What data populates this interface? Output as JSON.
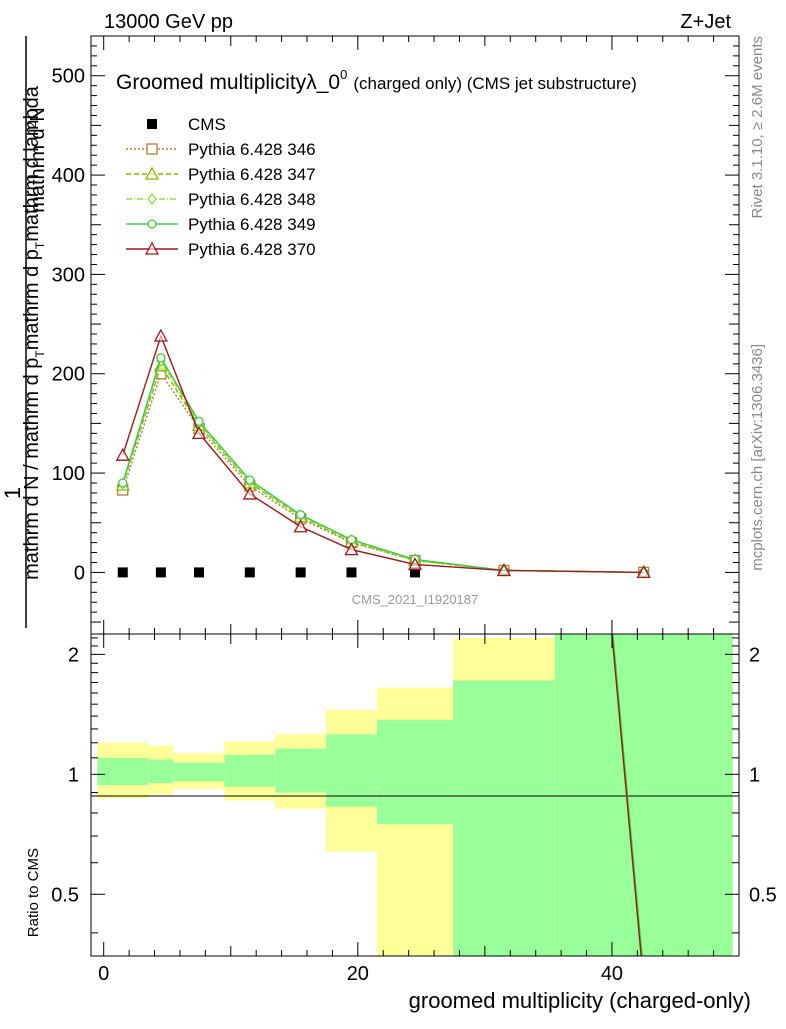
{
  "header": {
    "left": "13000 GeV pp",
    "right": "Z+Jet"
  },
  "side_labels": {
    "rivet": "Rivet 3.1.10, ≥ 2.6M events",
    "mcplots": "mcplots.cern.ch [arXiv:1306.3436]"
  },
  "chart_data": [
    {
      "type": "line",
      "title": "Groomed multiplicityλ_0",
      "title_sup": "0",
      "title_suffix": "(charged only) (CMS jet substructure)",
      "ylabel_top": "1",
      "ylabel_num": "mathrm d",
      "ylabel_num_sup": "2",
      "ylabel_num_end": "N",
      "ylabel_den": "mathrm d N / mathrm d p",
      "ylabel_den_sub": "T",
      "ylabel_den_end": "mathrm d p",
      "ylabel_den_sub2": "T",
      "ylabel_den_tail": "mathrm d lambda",
      "watermark": "CMS_2021_I1920187",
      "xlim": [
        -1,
        50
      ],
      "ylim": [
        -62,
        540
      ],
      "yticks": [
        0,
        100,
        200,
        300,
        400,
        500
      ],
      "legend_position": "top-left",
      "series": [
        {
          "name": "CMS",
          "color": "#000000",
          "marker": "square",
          "dash": "",
          "x": [
            1.5,
            4.5,
            7.5,
            11.5,
            15.5,
            19.5,
            24.5
          ],
          "y": [
            0,
            0,
            0,
            0,
            0,
            0,
            0
          ]
        },
        {
          "name": "Pythia 6.428 346",
          "color": "#b07d3a",
          "marker": "open-square",
          "dash": "2,2",
          "x": [
            1.5,
            4.5,
            7.5,
            11.5,
            15.5,
            19.5,
            24.5,
            31.5,
            42.5
          ],
          "y": [
            83,
            200,
            145,
            87,
            54,
            30,
            12,
            2,
            0
          ]
        },
        {
          "name": "Pythia 6.428 347",
          "color": "#8cb400",
          "marker": "open-triangle",
          "dash": "5,3",
          "x": [
            1.5,
            4.5,
            7.5,
            11.5,
            15.5,
            19.5,
            24.5,
            31.5,
            42.5
          ],
          "y": [
            88,
            208,
            148,
            90,
            56,
            31,
            12,
            2,
            0
          ]
        },
        {
          "name": "Pythia 6.428 348",
          "color": "#8fe03c",
          "marker": "open-diamond",
          "dash": "6,2,1,2",
          "x": [
            1.5,
            4.5,
            7.5,
            11.5,
            15.5,
            19.5,
            24.5,
            31.5,
            42.5
          ],
          "y": [
            89,
            213,
            150,
            91,
            57,
            32,
            12,
            2,
            0
          ]
        },
        {
          "name": "Pythia 6.428 349",
          "color": "#3ec83e",
          "marker": "open-circle",
          "dash": "",
          "x": [
            1.5,
            4.5,
            7.5,
            11.5,
            15.5,
            19.5,
            24.5,
            31.5,
            42.5
          ],
          "y": [
            90,
            216,
            152,
            93,
            58,
            33,
            13,
            2,
            0
          ]
        },
        {
          "name": "Pythia 6.428 370",
          "color": "#9b1a1a",
          "marker": "open-triangle",
          "dash": "",
          "x": [
            1.5,
            4.5,
            7.5,
            11.5,
            15.5,
            19.5,
            24.5,
            31.5,
            42.5
          ],
          "y": [
            118,
            238,
            140,
            79,
            46,
            23,
            8,
            2,
            0
          ]
        }
      ]
    },
    {
      "type": "area",
      "ylabel": "Ratio to CMS",
      "xlabel": "groomed multiplicity (charged-only)",
      "xlim": [
        -1,
        50
      ],
      "ylim": [
        0.35,
        2.25
      ],
      "yticks": [
        0.5,
        1,
        2
      ],
      "xticks": [
        0,
        20,
        40
      ],
      "bins": [
        {
          "x0": -0.5,
          "x1": 3.5,
          "band_lo": 0.87,
          "band_hi": 1.2,
          "stat_lo": 0.94,
          "stat_hi": 1.1
        },
        {
          "x0": 3.5,
          "x1": 5.5,
          "band_lo": 0.89,
          "band_hi": 1.18,
          "stat_lo": 0.95,
          "stat_hi": 1.09
        },
        {
          "x0": 5.5,
          "x1": 9.5,
          "band_lo": 0.92,
          "band_hi": 1.13,
          "stat_lo": 0.96,
          "stat_hi": 1.07
        },
        {
          "x0": 9.5,
          "x1": 13.5,
          "band_lo": 0.86,
          "band_hi": 1.21,
          "stat_lo": 0.93,
          "stat_hi": 1.12
        },
        {
          "x0": 13.5,
          "x1": 17.5,
          "band_lo": 0.82,
          "band_hi": 1.26,
          "stat_lo": 0.9,
          "stat_hi": 1.16
        },
        {
          "x0": 17.5,
          "x1": 21.5,
          "band_lo": 0.64,
          "band_hi": 1.45,
          "stat_lo": 0.83,
          "stat_hi": 1.26
        },
        {
          "x0": 21.5,
          "x1": 27.5,
          "band_lo": 0.35,
          "band_hi": 1.65,
          "stat_lo": 0.75,
          "stat_hi": 1.37
        },
        {
          "x0": 27.5,
          "x1": 35.5,
          "band_lo": 0.35,
          "band_hi": 2.2,
          "stat_lo": 0.35,
          "stat_hi": 1.72
        },
        {
          "x0": 35.5,
          "x1": 49.5,
          "band_lo": 0.35,
          "band_hi": 2.25,
          "stat_lo": 0.35,
          "stat_hi": 2.25
        }
      ],
      "band_color": "#ffff99",
      "stat_color": "#99ff99",
      "ratio_line": {
        "x": [
          40.0,
          42.3
        ],
        "y": [
          2.25,
          0.35
        ],
        "color": "#9b1a1a"
      }
    }
  ]
}
